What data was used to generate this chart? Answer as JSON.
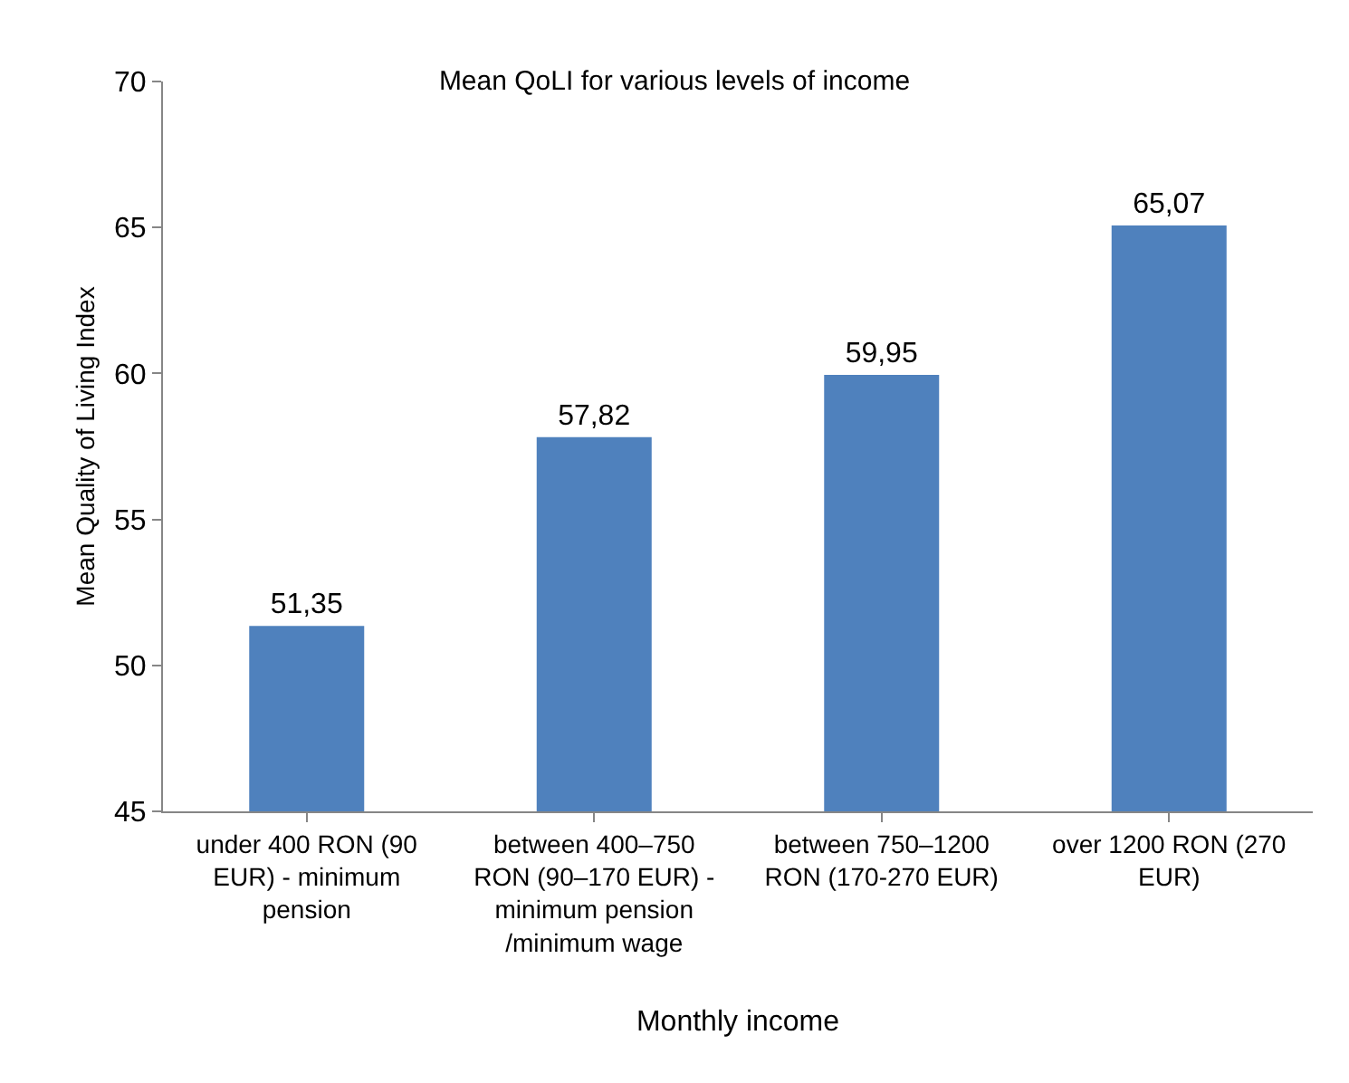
{
  "chart_data": {
    "type": "bar",
    "title": "Mean QoLI for various levels of income",
    "xlabel": "Monthly income",
    "ylabel": "Mean Quality of Living Index",
    "categories": [
      "under 400 RON (90 EUR) - minimum pension",
      "between 400–750 RON (90–170 EUR) - minimum pension /minimum wage",
      "between 750–1200 RON (170-270 EUR)",
      "over 1200 RON (270 EUR)"
    ],
    "values": [
      51.35,
      57.82,
      59.95,
      65.07
    ],
    "value_labels": [
      "51,35",
      "57,82",
      "59,95",
      "65,07"
    ],
    "color": "#4f81bd",
    "ylim": [
      45,
      70
    ],
    "yticks": [
      45,
      50,
      55,
      60,
      65,
      70
    ],
    "grid": false
  }
}
